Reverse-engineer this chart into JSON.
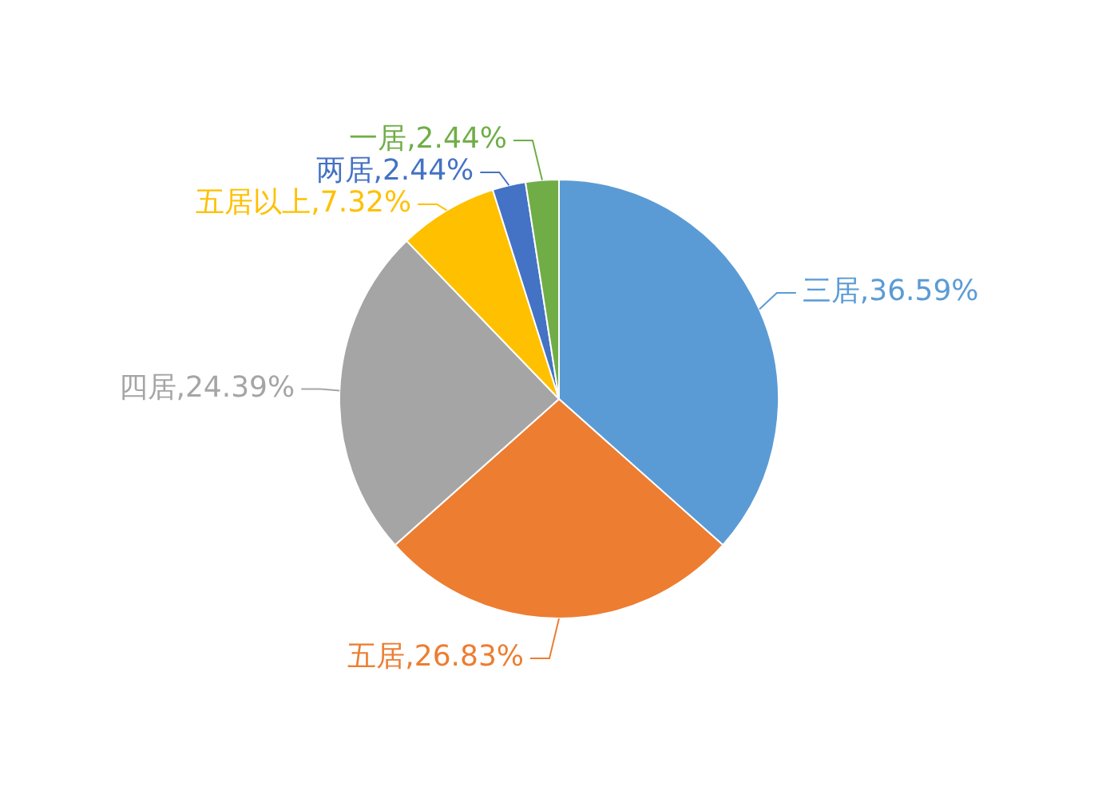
{
  "chart_data": {
    "type": "pie",
    "categories": [
      "三居",
      "五居",
      "四居",
      "五居以上",
      "两居",
      "一居"
    ],
    "values": [
      36.59,
      26.83,
      24.39,
      7.32,
      2.44,
      2.44
    ],
    "colors": [
      "#5b9bd5",
      "#ed7d31",
      "#a5a5a5",
      "#ffc000",
      "#4472c4",
      "#70ad47"
    ],
    "value_labels": [
      ",36.59%",
      ",26.83%",
      ",24.39%",
      ",7.32%",
      ",2.44%",
      ",2.44%"
    ],
    "legend": false
  }
}
